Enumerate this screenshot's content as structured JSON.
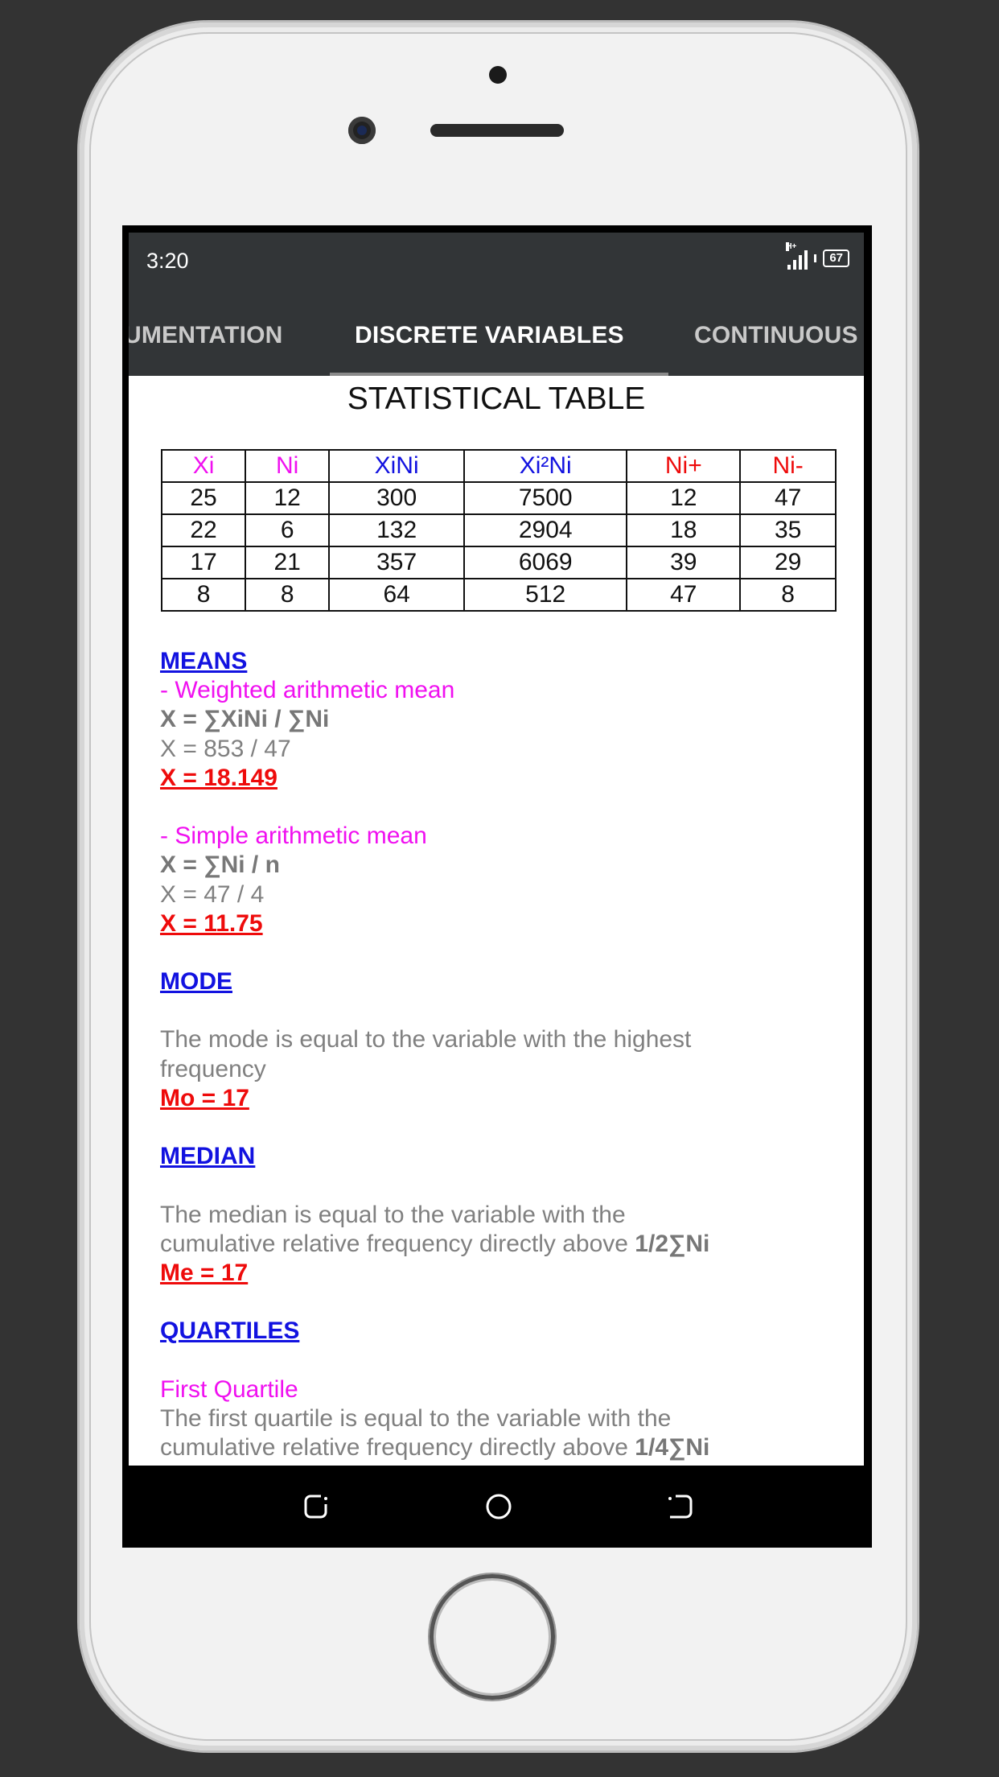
{
  "status_bar": {
    "time": "3:20",
    "network": "H+",
    "battery": "67"
  },
  "tabs": [
    {
      "label": "UMENTATION",
      "active": false
    },
    {
      "label": "DISCRETE VARIABLES",
      "active": true
    },
    {
      "label": "CONTINUOUS",
      "active": false
    }
  ],
  "title": "STATISTICAL TABLE",
  "table": {
    "headers": [
      {
        "label": "Xi",
        "color": "#f010f0"
      },
      {
        "label": "Ni",
        "color": "#f010f0"
      },
      {
        "label": "XiNi",
        "color": "#1212e0"
      },
      {
        "label": "Xi²Ni",
        "color": "#1212e0"
      },
      {
        "label": "Ni+",
        "color": "#ee0b0b"
      },
      {
        "label": "Ni-",
        "color": "#ee0b0b"
      }
    ],
    "rows": [
      [
        "25",
        "12",
        "300",
        "7500",
        "12",
        "47"
      ],
      [
        "22",
        "6",
        "132",
        "2904",
        "18",
        "35"
      ],
      [
        "17",
        "21",
        "357",
        "6069",
        "39",
        "29"
      ],
      [
        "8",
        "8",
        "64",
        "512",
        "47",
        "8"
      ]
    ]
  },
  "means": {
    "heading": "MEANS",
    "weighted": {
      "label": "- Weighted arithmetic mean",
      "formula": "X = ∑XiNi / ∑Ni",
      "computation": "X = 853 / 47",
      "result": "X = 18.149"
    },
    "simple": {
      "label": "- Simple arithmetic mean",
      "formula": "X = ∑Ni / n",
      "computation": "X = 47 / 4",
      "result": "X = 11.75"
    }
  },
  "mode": {
    "heading": "MODE",
    "text_lines": [
      "The mode is equal to the variable with the highest",
      "frequency"
    ],
    "result": "Mo = 17"
  },
  "median": {
    "heading": "MEDIAN",
    "text_line1": "The median is equal to the variable with the",
    "text_line2": "cumulative relative frequency directly above ",
    "threshold": "1/2∑Ni",
    "result": "Me = 17"
  },
  "quartiles": {
    "heading": "QUARTILES",
    "first_label": "First Quartile",
    "text_line1": "The first quartile is equal to the variable with the",
    "text_line2": "cumulative relative frequency directly above ",
    "threshold": "1/4∑Ni"
  },
  "nav_bar": {
    "icons": [
      "recent-apps-icon",
      "home-icon",
      "back-icon"
    ]
  }
}
